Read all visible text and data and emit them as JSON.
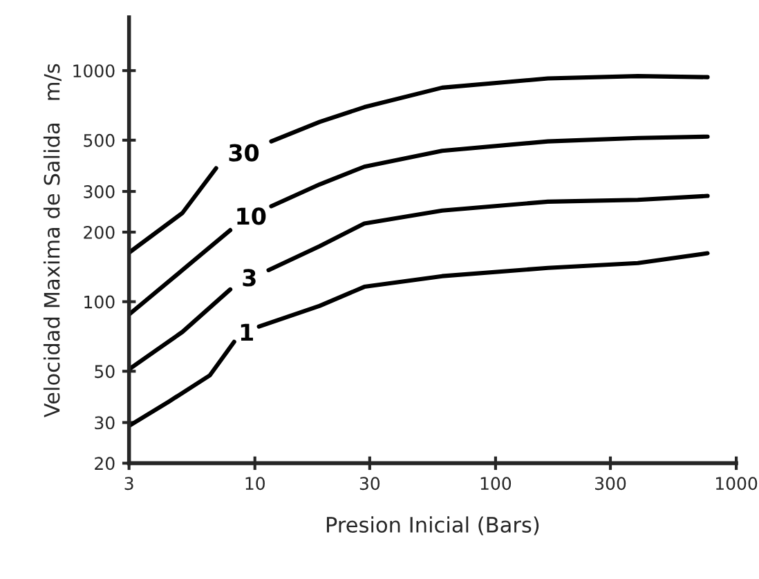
{
  "chart_data": {
    "type": "line",
    "xlabel": "Presion Inicial (Bars)",
    "ylabel": "Velocidad Maxima de Salida   m/s",
    "log": "xy",
    "xlim": [
      3,
      1000
    ],
    "ylim": [
      20,
      1700
    ],
    "xticks": [
      3,
      10,
      30,
      100,
      300,
      1000
    ],
    "yticks": [
      20,
      30,
      50,
      100,
      200,
      300,
      500,
      1000
    ],
    "grid": false,
    "legend": false,
    "marker": "none",
    "line_style": "solid",
    "series": [
      {
        "name": "1",
        "color": "#000000",
        "x": [
          3,
          4.4,
          6.5,
          8.2,
          9.3,
          10.4,
          18.6,
          28.5,
          60,
          165,
          390,
          760
        ],
        "values": [
          29,
          37,
          48,
          67,
          null,
          78,
          96,
          116,
          129,
          140,
          147,
          162
        ]
      },
      {
        "name": "3",
        "color": "#000000",
        "x": [
          3,
          5,
          7.9,
          9.6,
          11.4,
          18.6,
          28.5,
          60,
          165,
          390,
          760
        ],
        "values": [
          51,
          74,
          113,
          null,
          137,
          174,
          218,
          248,
          271,
          276,
          287
        ]
      },
      {
        "name": "10",
        "color": "#000000",
        "x": [
          3,
          5,
          7.9,
          9.6,
          11.7,
          18.6,
          28.5,
          60,
          165,
          390,
          760
        ],
        "values": [
          88,
          137,
          204,
          null,
          259,
          322,
          384,
          450,
          494,
          511,
          518
        ]
      },
      {
        "name": "30",
        "color": "#000000",
        "x": [
          3,
          5,
          6.9,
          9,
          11.7,
          18.6,
          28.5,
          60,
          165,
          390,
          760
        ],
        "values": [
          163,
          242,
          378,
          null,
          494,
          600,
          695,
          844,
          925,
          947,
          937
        ]
      }
    ]
  }
}
